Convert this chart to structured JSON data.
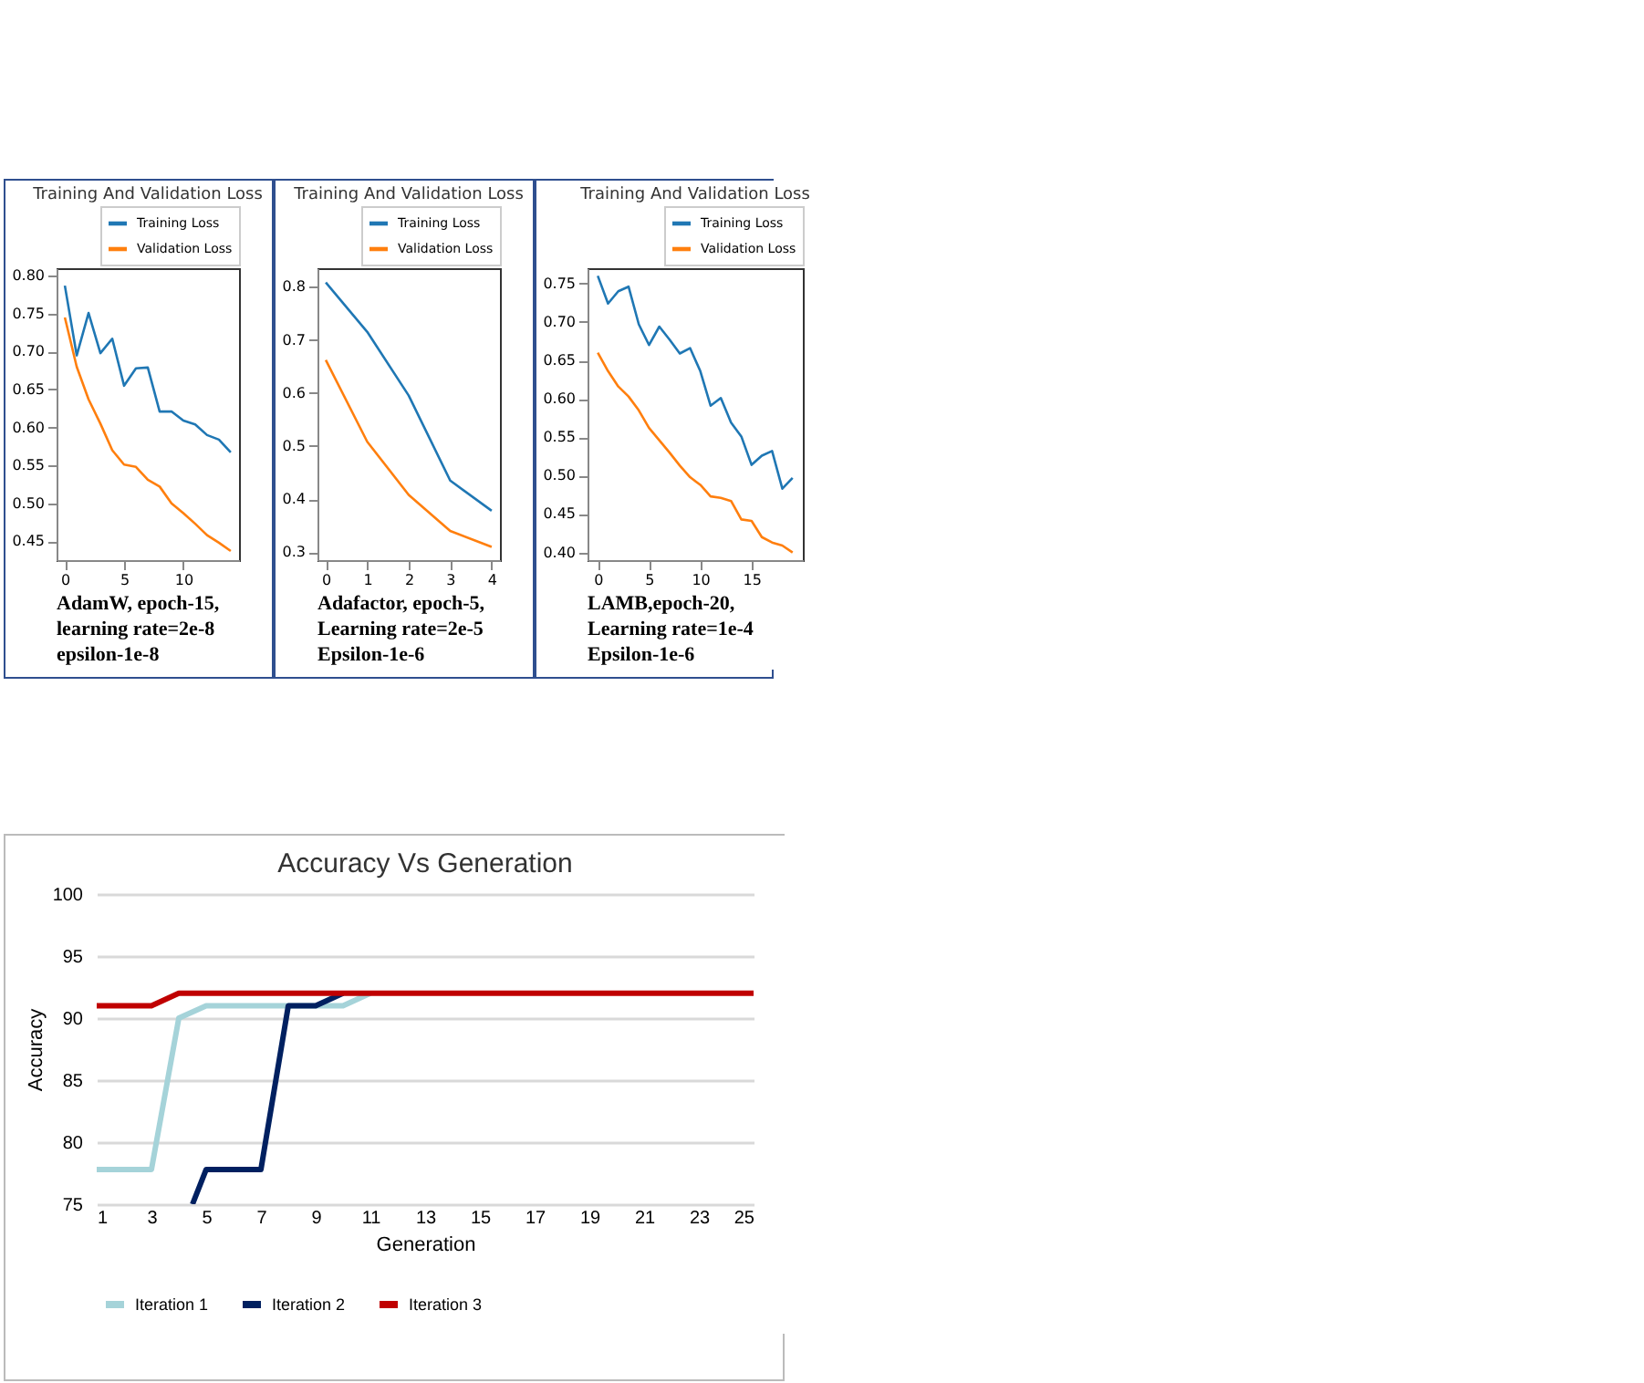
{
  "chart_data": [
    {
      "type": "line",
      "title": "Training And Validation Loss",
      "annotations": [
        "AdamW, epoch-15,",
        "learning rate=2e-8",
        "epsilon-1e-8"
      ],
      "x": [
        0,
        1,
        2,
        3,
        4,
        5,
        6,
        7,
        8,
        9,
        10,
        11,
        12,
        13,
        14
      ],
      "series": [
        {
          "name": "Training Loss",
          "color": "#1f77b4",
          "values": [
            0.787,
            0.695,
            0.751,
            0.698,
            0.717,
            0.655,
            0.678,
            0.679,
            0.621,
            0.621,
            0.609,
            0.604,
            0.59,
            0.584,
            0.567
          ]
        },
        {
          "name": "Validation Loss",
          "color": "#ff7f0e",
          "values": [
            0.745,
            0.68,
            0.637,
            0.605,
            0.57,
            0.551,
            0.548,
            0.531,
            0.522,
            0.5,
            0.487,
            0.473,
            0.458,
            0.448,
            0.437
          ]
        }
      ],
      "xlim": [
        -0.7,
        14.7
      ],
      "xticks": [
        0,
        5,
        10
      ],
      "ylim": [
        0.425,
        0.81
      ],
      "yticks": [
        {
          "value": 0.45,
          "label": "0.45"
        },
        {
          "value": 0.5,
          "label": "0.50"
        },
        {
          "value": 0.55,
          "label": "0.55"
        },
        {
          "value": 0.6,
          "label": "0.60"
        },
        {
          "value": 0.65,
          "label": "0.65"
        },
        {
          "value": 0.7,
          "label": "0.70"
        },
        {
          "value": 0.75,
          "label": "0.75"
        },
        {
          "value": 0.8,
          "label": "0.80"
        }
      ],
      "legend": "top right"
    },
    {
      "type": "line",
      "title": "Training And Validation Loss",
      "annotations": [
        "Adafactor, epoch-5,",
        "Learning rate=2e-5",
        "Epsilon-1e-6"
      ],
      "x": [
        0,
        1,
        2,
        3,
        4
      ],
      "series": [
        {
          "name": "Training Loss",
          "color": "#1f77b4",
          "values": [
            0.808,
            0.715,
            0.595,
            0.435,
            0.378
          ]
        },
        {
          "name": "Validation Loss",
          "color": "#ff7f0e",
          "values": [
            0.662,
            0.508,
            0.408,
            0.34,
            0.31
          ]
        }
      ],
      "xlim": [
        -0.2,
        4.2
      ],
      "xticks": [
        0,
        1,
        2,
        3,
        4
      ],
      "ylim": [
        0.285,
        0.835
      ],
      "yticks": [
        0.3,
        0.4,
        0.5,
        0.6,
        0.7,
        0.8
      ],
      "legend": "top right"
    },
    {
      "type": "line",
      "title": "Training And Validation Loss",
      "annotations": [
        "LAMB,epoch-20,",
        "Learning rate=1e-4",
        "Epsilon-1e-6"
      ],
      "x": [
        0,
        1,
        2,
        3,
        4,
        5,
        6,
        7,
        8,
        9,
        10,
        11,
        12,
        13,
        14,
        15,
        16,
        17,
        18,
        19
      ],
      "series": [
        {
          "name": "Training Loss",
          "color": "#1f77b4",
          "values": [
            0.76,
            0.724,
            0.74,
            0.746,
            0.697,
            0.67,
            0.694,
            0.677,
            0.659,
            0.666,
            0.636,
            0.591,
            0.601,
            0.569,
            0.551,
            0.514,
            0.526,
            0.532,
            0.483,
            0.497
          ]
        },
        {
          "name": "Validation Loss",
          "color": "#ff7f0e",
          "values": [
            0.66,
            0.636,
            0.616,
            0.603,
            0.585,
            0.562,
            0.546,
            0.53,
            0.513,
            0.498,
            0.488,
            0.473,
            0.471,
            0.467,
            0.443,
            0.441,
            0.42,
            0.413,
            0.409,
            0.4
          ]
        }
      ],
      "xlim": [
        -1,
        20
      ],
      "xticks": [
        0,
        5,
        10,
        15
      ],
      "ylim": [
        0.39,
        0.77
      ],
      "yticks": [
        {
          "value": 0.4,
          "label": "0.40"
        },
        {
          "value": 0.45,
          "label": "0.45"
        },
        {
          "value": 0.5,
          "label": "0.50"
        },
        {
          "value": 0.55,
          "label": "0.55"
        },
        {
          "value": 0.6,
          "label": "0.60"
        },
        {
          "value": 0.65,
          "label": "0.65"
        },
        {
          "value": 0.7,
          "label": "0.70"
        },
        {
          "value": 0.75,
          "label": "0.75"
        }
      ],
      "legend": "top right"
    },
    {
      "type": "line",
      "title": "Accuracy Vs Generation",
      "xlabel": "Generation",
      "ylabel": "Accuracy",
      "x": [
        1,
        2,
        3,
        4,
        5,
        6,
        7,
        8,
        9,
        10,
        11,
        12,
        13,
        14,
        15,
        16,
        17,
        18,
        19,
        20,
        21,
        22,
        23,
        24,
        25
      ],
      "series": [
        {
          "name": "Iteration 1",
          "color": "#a5d3d9",
          "x": [
            1,
            2,
            3,
            4,
            5,
            6,
            7,
            8,
            9,
            10,
            11
          ],
          "values": [
            77.8,
            77.8,
            77.8,
            90,
            91,
            91,
            91,
            91,
            91,
            91,
            92
          ]
        },
        {
          "name": "Iteration 2",
          "color": "#002060",
          "x": [
            4.5,
            5,
            6,
            7,
            8,
            9,
            10
          ],
          "values": [
            75,
            77.8,
            77.8,
            77.8,
            91,
            91,
            92
          ]
        },
        {
          "name": "Iteration 3",
          "color": "#c00000",
          "values": [
            91,
            91,
            91,
            92,
            92,
            92,
            92,
            92,
            92,
            92,
            92,
            92,
            92,
            92,
            92,
            92,
            92,
            92,
            92,
            92,
            92,
            92,
            92,
            92,
            92
          ]
        }
      ],
      "xlim": [
        1,
        25
      ],
      "xticks": [
        1,
        3,
        5,
        7,
        9,
        11,
        13,
        15,
        17,
        19,
        21,
        23,
        25
      ],
      "ylim": [
        75,
        100
      ],
      "yticks": [
        75,
        80,
        85,
        90,
        95,
        100
      ],
      "grid": "y",
      "legend": "bottom"
    }
  ]
}
